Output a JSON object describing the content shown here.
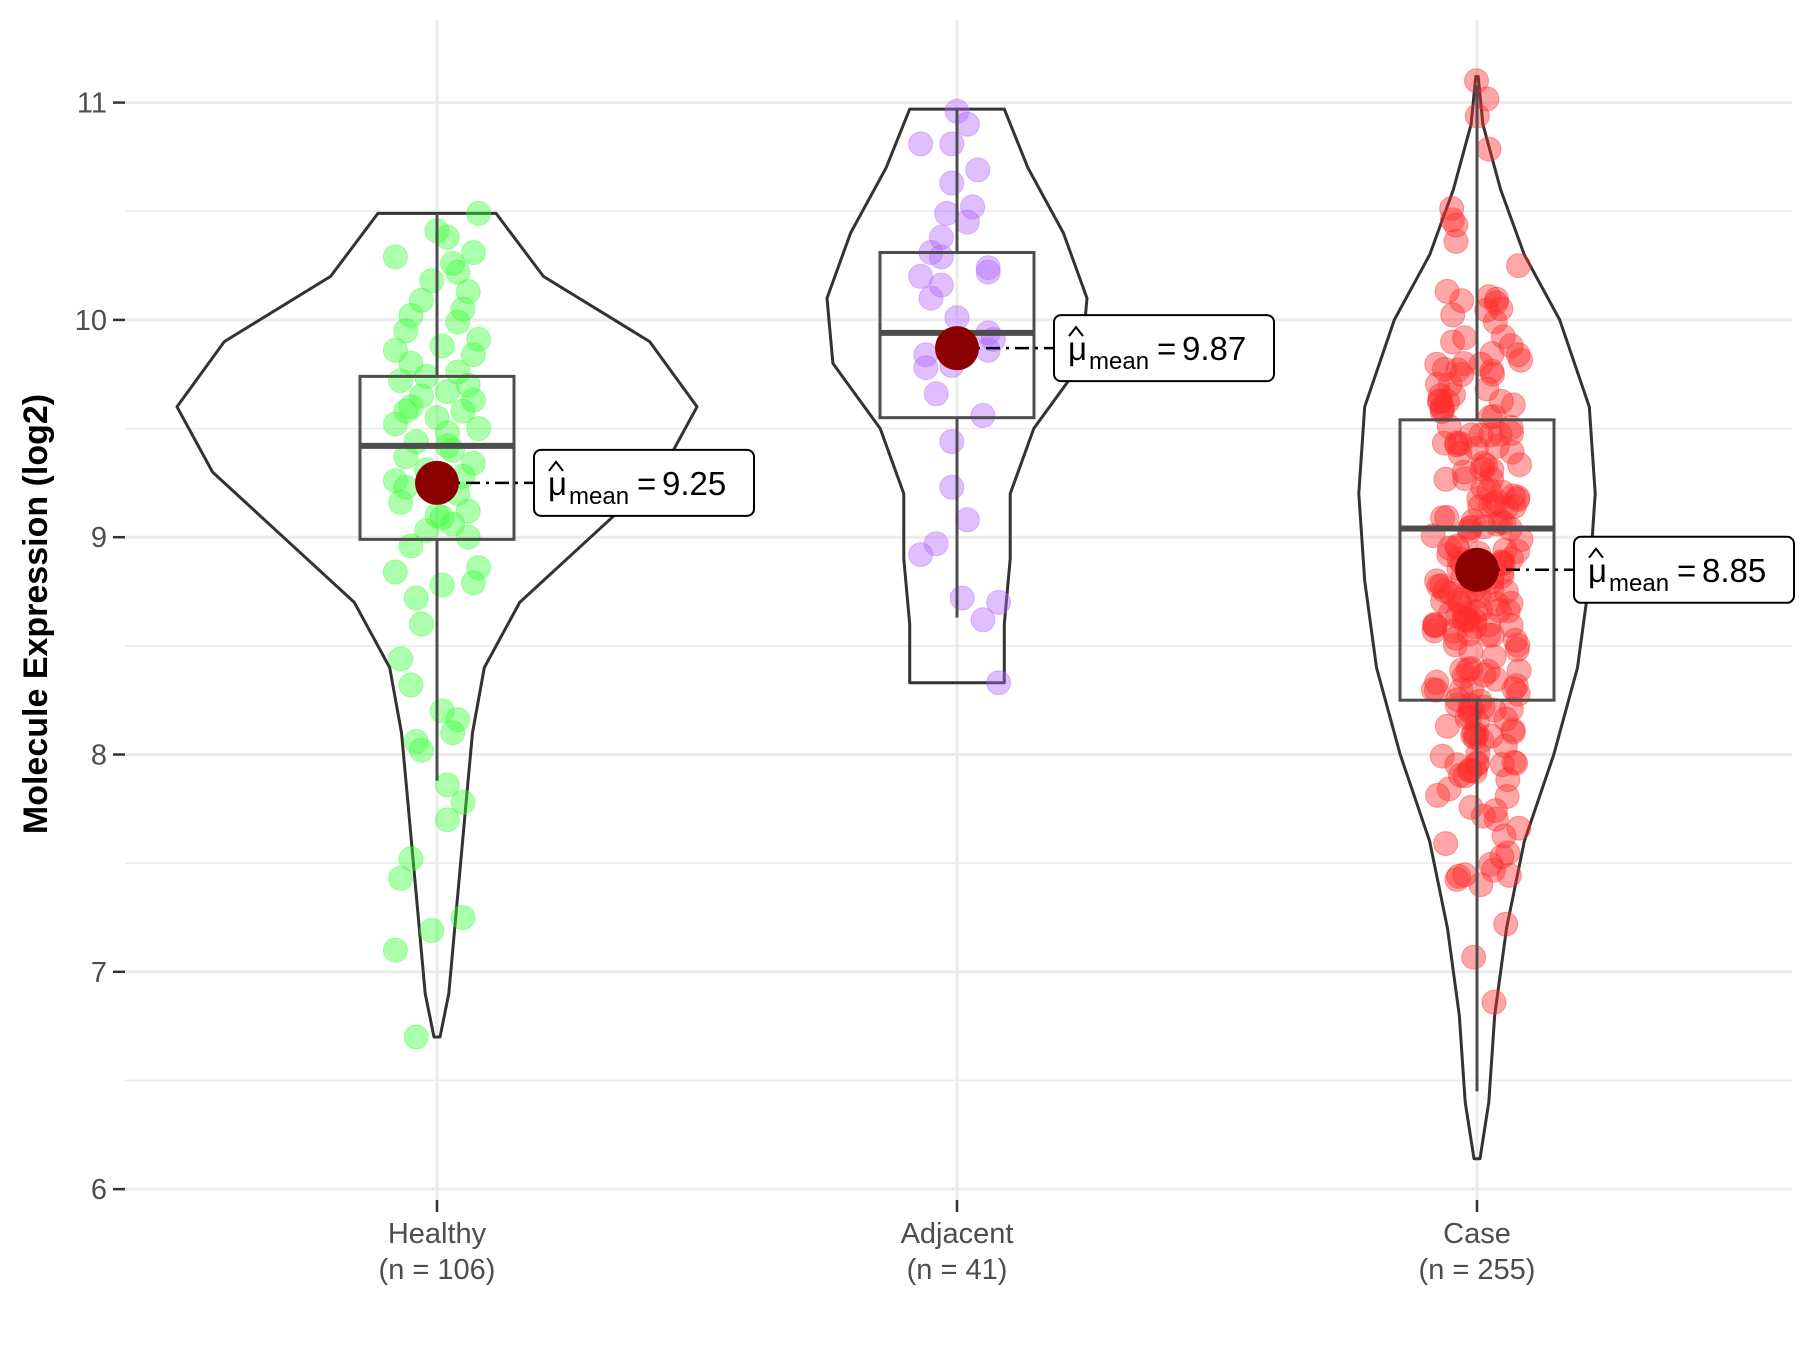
{
  "chart_data": {
    "type": "violin",
    "title": "",
    "xlabel": "",
    "ylabel": "Molecule Expression (log2)",
    "ylim": [
      5.95,
      11.38
    ],
    "yticks": [
      6,
      7,
      8,
      9,
      10,
      11
    ],
    "grid": true,
    "groups": [
      {
        "name": "Healthy",
        "n_label": "(n = 106)",
        "color": "#39FF36",
        "mean": 9.25,
        "mean_label": "9.25",
        "box": {
          "q1": 8.99,
          "median": 9.42,
          "q3": 9.74,
          "whisker_low": 7.88,
          "whisker_high": 10.49
        },
        "violin": [
          [
            6.7,
            0.005
          ],
          [
            6.9,
            0.02
          ],
          [
            7.2,
            0.03
          ],
          [
            7.5,
            0.04
          ],
          [
            7.8,
            0.05
          ],
          [
            8.1,
            0.06
          ],
          [
            8.4,
            0.08
          ],
          [
            8.7,
            0.14
          ],
          [
            9.0,
            0.26
          ],
          [
            9.3,
            0.38
          ],
          [
            9.6,
            0.44
          ],
          [
            9.9,
            0.36
          ],
          [
            10.2,
            0.18
          ],
          [
            10.49,
            0.1
          ]
        ],
        "points": [
          [
            6.7,
            -0.04
          ],
          [
            7.1,
            -0.08
          ],
          [
            7.19,
            -0.01
          ],
          [
            7.25,
            0.05
          ],
          [
            7.43,
            -0.07
          ],
          [
            7.52,
            -0.05
          ],
          [
            7.7,
            0.02
          ],
          [
            7.78,
            0.05
          ],
          [
            7.86,
            0.02
          ],
          [
            8.02,
            -0.03
          ],
          [
            8.06,
            -0.04
          ],
          [
            8.1,
            0.03
          ],
          [
            8.16,
            0.04
          ],
          [
            8.2,
            0.01
          ],
          [
            8.32,
            -0.05
          ],
          [
            8.44,
            -0.07
          ],
          [
            8.6,
            -0.03
          ],
          [
            8.72,
            -0.04
          ],
          [
            8.78,
            0.01
          ],
          [
            8.79,
            0.07
          ],
          [
            8.84,
            -0.08
          ],
          [
            8.86,
            0.08
          ],
          [
            8.96,
            -0.05
          ],
          [
            9.0,
            0.06
          ],
          [
            9.03,
            -0.02
          ],
          [
            9.06,
            0.03
          ],
          [
            9.1,
            0.0
          ],
          [
            9.12,
            0.06
          ],
          [
            9.16,
            -0.07
          ],
          [
            9.2,
            0.04
          ],
          [
            9.23,
            -0.06
          ],
          [
            9.28,
            0.05
          ],
          [
            9.31,
            -0.02
          ],
          [
            9.34,
            0.07
          ],
          [
            9.37,
            -0.06
          ],
          [
            9.4,
            0.03
          ],
          [
            9.44,
            -0.04
          ],
          [
            9.48,
            0.02
          ],
          [
            9.5,
            0.08
          ],
          [
            9.52,
            -0.08
          ],
          [
            9.55,
            0.0
          ],
          [
            9.58,
            0.05
          ],
          [
            9.6,
            -0.05
          ],
          [
            9.63,
            0.07
          ],
          [
            9.65,
            -0.03
          ],
          [
            9.67,
            0.02
          ],
          [
            9.7,
            0.06
          ],
          [
            9.72,
            -0.07
          ],
          [
            9.74,
            -0.02
          ],
          [
            9.76,
            0.04
          ],
          [
            9.8,
            -0.05
          ],
          [
            9.84,
            0.07
          ],
          [
            9.86,
            -0.08
          ],
          [
            9.88,
            0.01
          ],
          [
            9.91,
            0.08
          ],
          [
            9.95,
            -0.06
          ],
          [
            9.99,
            0.04
          ],
          [
            10.02,
            -0.05
          ],
          [
            10.05,
            0.05
          ],
          [
            10.09,
            -0.03
          ],
          [
            10.13,
            0.06
          ],
          [
            10.18,
            -0.01
          ],
          [
            10.22,
            0.04
          ],
          [
            10.26,
            0.03
          ],
          [
            10.29,
            -0.08
          ],
          [
            10.31,
            0.07
          ],
          [
            10.38,
            0.02
          ],
          [
            10.41,
            0.0
          ],
          [
            10.49,
            0.08
          ],
          [
            9.26,
            -0.08
          ],
          [
            9.42,
            0.02
          ],
          [
            9.58,
            -0.06
          ],
          [
            9.09,
            0.01
          ]
        ]
      },
      {
        "name": "Adjacent",
        "n_label": "(n = 41)",
        "color": "#B266FF",
        "mean": 9.87,
        "mean_label": "9.87",
        "box": {
          "q1": 9.55,
          "median": 9.94,
          "q3": 10.31,
          "whisker_low": 8.63,
          "whisker_high": 10.97
        },
        "violin": [
          [
            8.33,
            0.08
          ],
          [
            8.6,
            0.08
          ],
          [
            8.9,
            0.09
          ],
          [
            9.2,
            0.09
          ],
          [
            9.5,
            0.13
          ],
          [
            9.8,
            0.21
          ],
          [
            10.1,
            0.22
          ],
          [
            10.4,
            0.18
          ],
          [
            10.7,
            0.12
          ],
          [
            10.97,
            0.08
          ]
        ],
        "points": [
          [
            8.33,
            0.08
          ],
          [
            8.62,
            0.05
          ],
          [
            8.7,
            0.08
          ],
          [
            8.72,
            0.01
          ],
          [
            8.92,
            -0.07
          ],
          [
            8.97,
            -0.04
          ],
          [
            9.08,
            0.02
          ],
          [
            9.23,
            -0.01
          ],
          [
            9.44,
            -0.01
          ],
          [
            9.56,
            0.05
          ],
          [
            9.66,
            -0.04
          ],
          [
            9.78,
            -0.06
          ],
          [
            9.79,
            -0.01
          ],
          [
            9.84,
            -0.06
          ],
          [
            9.86,
            0.06
          ],
          [
            9.89,
            0.01
          ],
          [
            9.91,
            0.07
          ],
          [
            9.94,
            0.06
          ],
          [
            10.01,
            0.0
          ],
          [
            10.1,
            -0.05
          ],
          [
            10.16,
            -0.03
          ],
          [
            10.2,
            -0.07
          ],
          [
            10.22,
            0.06
          ],
          [
            10.24,
            0.06
          ],
          [
            10.29,
            -0.03
          ],
          [
            10.31,
            -0.05
          ],
          [
            10.38,
            -0.03
          ],
          [
            10.45,
            0.02
          ],
          [
            10.49,
            -0.02
          ],
          [
            10.52,
            0.03
          ],
          [
            10.63,
            -0.01
          ],
          [
            10.69,
            0.04
          ],
          [
            10.81,
            -0.01
          ],
          [
            10.9,
            0.02
          ],
          [
            10.96,
            0.0
          ],
          [
            10.81,
            -0.07
          ]
        ]
      },
      {
        "name": "Case",
        "n_label": "(n = 255)",
        "color": "#FF2A2A",
        "mean": 8.85,
        "mean_label": "8.85",
        "box": {
          "q1": 8.25,
          "median": 9.04,
          "q3": 9.54,
          "whisker_low": 6.45,
          "whisker_high": 11.08
        },
        "violin": [
          [
            6.14,
            0.005
          ],
          [
            6.4,
            0.02
          ],
          [
            6.8,
            0.03
          ],
          [
            7.2,
            0.05
          ],
          [
            7.6,
            0.08
          ],
          [
            8.0,
            0.13
          ],
          [
            8.4,
            0.17
          ],
          [
            8.8,
            0.19
          ],
          [
            9.2,
            0.2
          ],
          [
            9.6,
            0.19
          ],
          [
            10.0,
            0.14
          ],
          [
            10.3,
            0.08
          ],
          [
            10.6,
            0.04
          ],
          [
            10.9,
            0.01
          ],
          [
            11.12,
            0.002
          ]
        ]
      }
    ]
  }
}
